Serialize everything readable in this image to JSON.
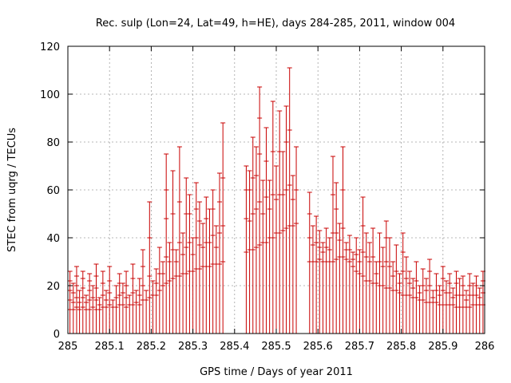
{
  "chart_data": {
    "type": "scatter",
    "title": "Rec. sulp (Lon=24, Lat=49, h=HE), days 284-285, 2011, window 004",
    "xlabel": "GPS time / Days of year 2011",
    "ylabel": "STEC from uqrg / TECUs",
    "xlim": [
      285,
      286
    ],
    "ylim": [
      0,
      120
    ],
    "xticks": [
      285,
      285.1,
      285.2,
      285.3,
      285.4,
      285.5,
      285.6,
      285.7,
      285.8,
      285.9,
      286
    ],
    "xtick_labels": [
      "285",
      "285.1",
      "285.2",
      "285.3",
      "285.4",
      "285.5",
      "285.6",
      "285.7",
      "285.8",
      "285.9",
      "286"
    ],
    "yticks": [
      0,
      20,
      40,
      60,
      80,
      100,
      120
    ],
    "ytick_labels": [
      "0",
      "20",
      "40",
      "60",
      "80",
      "100",
      "120"
    ],
    "grid": true,
    "color": "#c80000",
    "series_style": "vertical error bars from 0 to the top value with cross-tick markers at individual values",
    "points": [
      {
        "x": 285.005,
        "top": 26,
        "marks": [
          10,
          14,
          18,
          22,
          26
        ]
      },
      {
        "x": 285.013,
        "top": 21,
        "marks": [
          10,
          13,
          17,
          21
        ]
      },
      {
        "x": 285.021,
        "top": 28,
        "marks": [
          11,
          15,
          20,
          24,
          28
        ]
      },
      {
        "x": 285.028,
        "top": 18,
        "marks": [
          10,
          13,
          18
        ]
      },
      {
        "x": 285.036,
        "top": 26,
        "marks": [
          11,
          15,
          19,
          23,
          26
        ]
      },
      {
        "x": 285.044,
        "top": 16,
        "marks": [
          10,
          13,
          16
        ]
      },
      {
        "x": 285.052,
        "top": 25,
        "marks": [
          10,
          14,
          18,
          22,
          25
        ]
      },
      {
        "x": 285.06,
        "top": 20,
        "marks": [
          11,
          15,
          20
        ]
      },
      {
        "x": 285.068,
        "top": 29,
        "marks": [
          10,
          14,
          19,
          24,
          29
        ]
      },
      {
        "x": 285.076,
        "top": 15,
        "marks": [
          10,
          12,
          15
        ]
      },
      {
        "x": 285.084,
        "top": 26,
        "marks": [
          11,
          16,
          21,
          26
        ]
      },
      {
        "x": 285.092,
        "top": 18,
        "marks": [
          11,
          14,
          18
        ]
      },
      {
        "x": 285.1,
        "top": 28,
        "marks": [
          12,
          17,
          22,
          28
        ]
      },
      {
        "x": 285.108,
        "top": 14,
        "marks": [
          11,
          14
        ]
      },
      {
        "x": 285.116,
        "top": 20,
        "marks": [
          11,
          15,
          20
        ]
      },
      {
        "x": 285.124,
        "top": 25,
        "marks": [
          12,
          16,
          21,
          25
        ]
      },
      {
        "x": 285.132,
        "top": 21,
        "marks": [
          12,
          17,
          21
        ]
      },
      {
        "x": 285.14,
        "top": 26,
        "marks": [
          11,
          15,
          20,
          26
        ]
      },
      {
        "x": 285.148,
        "top": 16,
        "marks": [
          12,
          16
        ]
      },
      {
        "x": 285.156,
        "top": 29,
        "marks": [
          12,
          17,
          23,
          29
        ]
      },
      {
        "x": 285.164,
        "top": 18,
        "marks": [
          13,
          18
        ]
      },
      {
        "x": 285.172,
        "top": 23,
        "marks": [
          12,
          16,
          23
        ]
      },
      {
        "x": 285.18,
        "top": 35,
        "marks": [
          14,
          20,
          28,
          35
        ]
      },
      {
        "x": 285.188,
        "top": 18,
        "marks": [
          14,
          18
        ]
      },
      {
        "x": 285.196,
        "top": 55,
        "marks": [
          15,
          24,
          40,
          55
        ]
      },
      {
        "x": 285.204,
        "top": 22,
        "marks": [
          16,
          22
        ]
      },
      {
        "x": 285.212,
        "top": 27,
        "marks": [
          16,
          21,
          27
        ]
      },
      {
        "x": 285.22,
        "top": 36,
        "marks": [
          18,
          25,
          36
        ]
      },
      {
        "x": 285.228,
        "top": 30,
        "marks": [
          20,
          25,
          30
        ]
      },
      {
        "x": 285.236,
        "top": 75,
        "marks": [
          21,
          32,
          48,
          60,
          75
        ]
      },
      {
        "x": 285.244,
        "top": 38,
        "marks": [
          22,
          30,
          38
        ]
      },
      {
        "x": 285.252,
        "top": 68,
        "marks": [
          23,
          35,
          50,
          68
        ]
      },
      {
        "x": 285.26,
        "top": 35,
        "marks": [
          24,
          30,
          35
        ]
      },
      {
        "x": 285.268,
        "top": 78,
        "marks": [
          24,
          38,
          55,
          78
        ]
      },
      {
        "x": 285.276,
        "top": 42,
        "marks": [
          25,
          33,
          42
        ]
      },
      {
        "x": 285.284,
        "top": 65,
        "marks": [
          25,
          36,
          50,
          65
        ]
      },
      {
        "x": 285.292,
        "top": 58,
        "marks": [
          26,
          38,
          50,
          58
        ]
      },
      {
        "x": 285.3,
        "top": 40,
        "marks": [
          26,
          33,
          40
        ]
      },
      {
        "x": 285.308,
        "top": 63,
        "marks": [
          27,
          40,
          52,
          63
        ]
      },
      {
        "x": 285.316,
        "top": 55,
        "marks": [
          27,
          37,
          47,
          55
        ]
      },
      {
        "x": 285.324,
        "top": 46,
        "marks": [
          28,
          36,
          46
        ]
      },
      {
        "x": 285.332,
        "top": 57,
        "marks": [
          28,
          38,
          48,
          57
        ]
      },
      {
        "x": 285.34,
        "top": 52,
        "marks": [
          28,
          38,
          52
        ]
      },
      {
        "x": 285.348,
        "top": 60,
        "marks": [
          29,
          41,
          52,
          60
        ]
      },
      {
        "x": 285.356,
        "top": 45,
        "marks": [
          29,
          36,
          45
        ]
      },
      {
        "x": 285.364,
        "top": 67,
        "marks": [
          29,
          42,
          55,
          67
        ]
      },
      {
        "x": 285.372,
        "top": 88,
        "marks": [
          30,
          45,
          65,
          88
        ]
      },
      {
        "x": 285.428,
        "top": 70,
        "marks": [
          34,
          48,
          60,
          70
        ]
      },
      {
        "x": 285.436,
        "top": 68,
        "marks": [
          35,
          47,
          60,
          68
        ]
      },
      {
        "x": 285.444,
        "top": 82,
        "marks": [
          35,
          50,
          65,
          82
        ]
      },
      {
        "x": 285.452,
        "top": 78,
        "marks": [
          36,
          52,
          66,
          78
        ]
      },
      {
        "x": 285.46,
        "top": 103,
        "marks": [
          37,
          55,
          75,
          90,
          103
        ]
      },
      {
        "x": 285.468,
        "top": 64,
        "marks": [
          38,
          50,
          64
        ]
      },
      {
        "x": 285.476,
        "top": 86,
        "marks": [
          38,
          57,
          72,
          86
        ]
      },
      {
        "x": 285.484,
        "top": 64,
        "marks": [
          40,
          52,
          64
        ]
      },
      {
        "x": 285.492,
        "top": 97,
        "marks": [
          40,
          58,
          76,
          97
        ]
      },
      {
        "x": 285.5,
        "top": 70,
        "marks": [
          42,
          56,
          70
        ]
      },
      {
        "x": 285.508,
        "top": 93,
        "marks": [
          42,
          58,
          76,
          93
        ]
      },
      {
        "x": 285.516,
        "top": 76,
        "marks": [
          43,
          58,
          76
        ]
      },
      {
        "x": 285.524,
        "top": 95,
        "marks": [
          44,
          60,
          80,
          95
        ]
      },
      {
        "x": 285.532,
        "top": 111,
        "marks": [
          45,
          62,
          85,
          111
        ]
      },
      {
        "x": 285.54,
        "top": 66,
        "marks": [
          45,
          56,
          66
        ]
      },
      {
        "x": 285.548,
        "top": 78,
        "marks": [
          46,
          60,
          78
        ]
      },
      {
        "x": 285.58,
        "top": 59,
        "marks": [
          30,
          40,
          50,
          59
        ]
      },
      {
        "x": 285.588,
        "top": 45,
        "marks": [
          30,
          37,
          45
        ]
      },
      {
        "x": 285.596,
        "top": 49,
        "marks": [
          30,
          38,
          49
        ]
      },
      {
        "x": 285.604,
        "top": 43,
        "marks": [
          31,
          36,
          43
        ]
      },
      {
        "x": 285.612,
        "top": 38,
        "marks": [
          30,
          34,
          38
        ]
      },
      {
        "x": 285.62,
        "top": 44,
        "marks": [
          30,
          36,
          44
        ]
      },
      {
        "x": 285.628,
        "top": 40,
        "marks": [
          30,
          35,
          40
        ]
      },
      {
        "x": 285.636,
        "top": 74,
        "marks": [
          30,
          42,
          58,
          74
        ]
      },
      {
        "x": 285.644,
        "top": 63,
        "marks": [
          31,
          42,
          52,
          63
        ]
      },
      {
        "x": 285.652,
        "top": 46,
        "marks": [
          32,
          39,
          46
        ]
      },
      {
        "x": 285.66,
        "top": 78,
        "marks": [
          32,
          44,
          60,
          78
        ]
      },
      {
        "x": 285.668,
        "top": 38,
        "marks": [
          31,
          35,
          38
        ]
      },
      {
        "x": 285.676,
        "top": 41,
        "marks": [
          30,
          35,
          41
        ]
      },
      {
        "x": 285.684,
        "top": 34,
        "marks": [
          28,
          31,
          34
        ]
      },
      {
        "x": 285.692,
        "top": 40,
        "marks": [
          26,
          33,
          40
        ]
      },
      {
        "x": 285.7,
        "top": 35,
        "marks": [
          25,
          30,
          35
        ]
      },
      {
        "x": 285.708,
        "top": 57,
        "marks": [
          24,
          34,
          45,
          57
        ]
      },
      {
        "x": 285.716,
        "top": 42,
        "marks": [
          22,
          32,
          42
        ]
      },
      {
        "x": 285.724,
        "top": 38,
        "marks": [
          22,
          30,
          38
        ]
      },
      {
        "x": 285.732,
        "top": 44,
        "marks": [
          21,
          32,
          44
        ]
      },
      {
        "x": 285.74,
        "top": 30,
        "marks": [
          21,
          25,
          30
        ]
      },
      {
        "x": 285.748,
        "top": 42,
        "marks": [
          20,
          30,
          42
        ]
      },
      {
        "x": 285.756,
        "top": 36,
        "marks": [
          20,
          28,
          36
        ]
      },
      {
        "x": 285.764,
        "top": 47,
        "marks": [
          19,
          30,
          40,
          47
        ]
      },
      {
        "x": 285.772,
        "top": 40,
        "marks": [
          19,
          28,
          40
        ]
      },
      {
        "x": 285.78,
        "top": 30,
        "marks": [
          18,
          24,
          30
        ]
      },
      {
        "x": 285.788,
        "top": 37,
        "marks": [
          18,
          26,
          37
        ]
      },
      {
        "x": 285.796,
        "top": 25,
        "marks": [
          17,
          21,
          25
        ]
      },
      {
        "x": 285.804,
        "top": 42,
        "marks": [
          16,
          26,
          34,
          42
        ]
      },
      {
        "x": 285.812,
        "top": 32,
        "marks": [
          16,
          23,
          32
        ]
      },
      {
        "x": 285.82,
        "top": 26,
        "marks": [
          16,
          21,
          26
        ]
      },
      {
        "x": 285.828,
        "top": 23,
        "marks": [
          15,
          19,
          23
        ]
      },
      {
        "x": 285.836,
        "top": 30,
        "marks": [
          15,
          22,
          30
        ]
      },
      {
        "x": 285.844,
        "top": 20,
        "marks": [
          14,
          17,
          20
        ]
      },
      {
        "x": 285.852,
        "top": 27,
        "marks": [
          14,
          20,
          27
        ]
      },
      {
        "x": 285.86,
        "top": 23,
        "marks": [
          13,
          18,
          23
        ]
      },
      {
        "x": 285.868,
        "top": 31,
        "marks": [
          13,
          20,
          26,
          31
        ]
      },
      {
        "x": 285.876,
        "top": 18,
        "marks": [
          13,
          15,
          18
        ]
      },
      {
        "x": 285.884,
        "top": 25,
        "marks": [
          13,
          18,
          25
        ]
      },
      {
        "x": 285.892,
        "top": 20,
        "marks": [
          12,
          16,
          20
        ]
      },
      {
        "x": 285.9,
        "top": 28,
        "marks": [
          12,
          18,
          23,
          28
        ]
      },
      {
        "x": 285.908,
        "top": 22,
        "marks": [
          12,
          17,
          22
        ]
      },
      {
        "x": 285.916,
        "top": 25,
        "marks": [
          12,
          17,
          21,
          25
        ]
      },
      {
        "x": 285.924,
        "top": 19,
        "marks": [
          12,
          15,
          19
        ]
      },
      {
        "x": 285.932,
        "top": 26,
        "marks": [
          11,
          16,
          21,
          26
        ]
      },
      {
        "x": 285.94,
        "top": 23,
        "marks": [
          11,
          16,
          23
        ]
      },
      {
        "x": 285.948,
        "top": 24,
        "marks": [
          11,
          16,
          20,
          24
        ]
      },
      {
        "x": 285.956,
        "top": 18,
        "marks": [
          11,
          14,
          18
        ]
      },
      {
        "x": 285.964,
        "top": 25,
        "marks": [
          11,
          16,
          20,
          25
        ]
      },
      {
        "x": 285.972,
        "top": 21,
        "marks": [
          12,
          16,
          21
        ]
      },
      {
        "x": 285.98,
        "top": 24,
        "marks": [
          12,
          16,
          20,
          24
        ]
      },
      {
        "x": 285.988,
        "top": 19,
        "marks": [
          12,
          15,
          19
        ]
      },
      {
        "x": 285.996,
        "top": 26,
        "marks": [
          12,
          17,
          22,
          26
        ]
      }
    ]
  }
}
